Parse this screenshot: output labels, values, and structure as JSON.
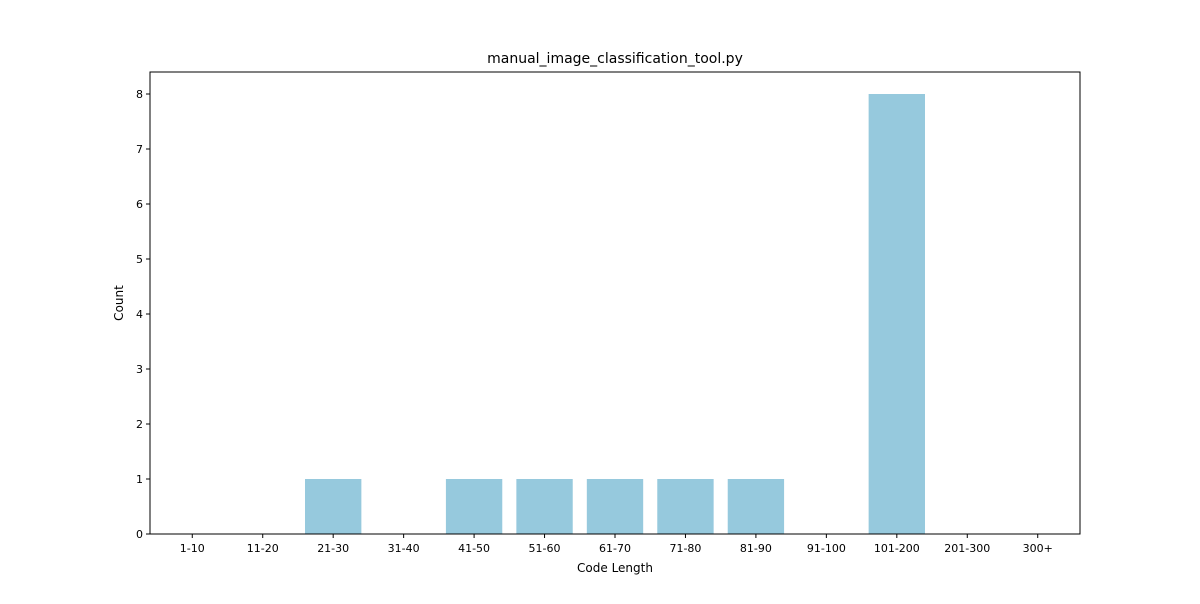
{
  "chart_data": {
    "type": "bar",
    "title": "manual_image_classification_tool.py",
    "xlabel": "Code Length",
    "ylabel": "Count",
    "categories": [
      "1-10",
      "11-20",
      "21-30",
      "31-40",
      "41-50",
      "51-60",
      "61-70",
      "71-80",
      "81-90",
      "91-100",
      "101-200",
      "201-300",
      "300+"
    ],
    "values": [
      0,
      0,
      1,
      0,
      1,
      1,
      1,
      1,
      1,
      0,
      8,
      0,
      0
    ],
    "ylim": [
      0,
      8.4
    ],
    "yticks": [
      0,
      1,
      2,
      3,
      4,
      5,
      6,
      7,
      8
    ],
    "grid": false,
    "bar_color": "#96c9dd"
  }
}
